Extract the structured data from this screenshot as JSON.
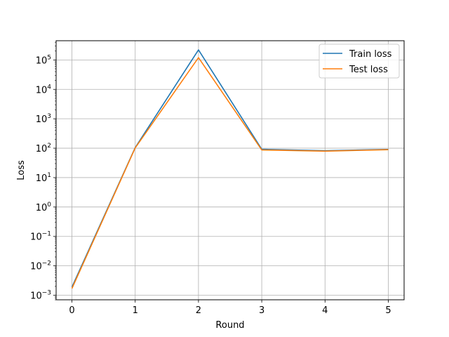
{
  "chart_data": {
    "type": "line",
    "title": "",
    "xlabel": "Round",
    "ylabel": "Loss",
    "yscale": "log",
    "x": [
      0,
      1,
      2,
      3,
      4,
      5
    ],
    "xlim": [
      -0.25,
      5.25
    ],
    "ylim": [
      0.0007,
      450000
    ],
    "xticks": [
      "0",
      "1",
      "2",
      "3",
      "4",
      "5"
    ],
    "yticks": [
      {
        "value": 0.001,
        "base": "10",
        "exp": "−3"
      },
      {
        "value": 0.01,
        "base": "10",
        "exp": "−2"
      },
      {
        "value": 0.1,
        "base": "10",
        "exp": "−1"
      },
      {
        "value": 1,
        "base": "10",
        "exp": "0"
      },
      {
        "value": 10,
        "base": "10",
        "exp": "1"
      },
      {
        "value": 100,
        "base": "10",
        "exp": "2"
      },
      {
        "value": 1000,
        "base": "10",
        "exp": "3"
      },
      {
        "value": 10000,
        "base": "10",
        "exp": "4"
      },
      {
        "value": 100000,
        "base": "10",
        "exp": "5"
      }
    ],
    "grid": true,
    "legend_position": "top-right",
    "series": [
      {
        "name": "Train loss",
        "color": "#1f77b4",
        "values": [
          0.0019,
          105,
          220000,
          92,
          82,
          91
        ]
      },
      {
        "name": "Test loss",
        "color": "#ff7f0e",
        "values": [
          0.0017,
          102,
          120000,
          87,
          79,
          89
        ]
      }
    ]
  }
}
